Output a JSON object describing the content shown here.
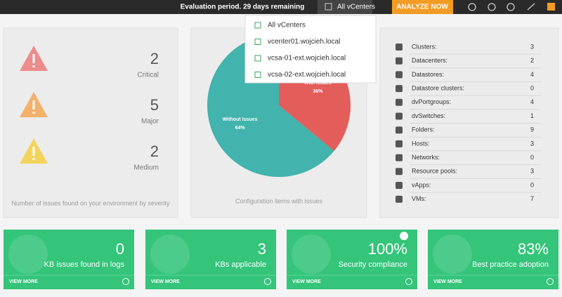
{
  "header": {
    "evaluation": "Evaluation period. 29 days remaining",
    "vcenter_button": "All vCenters",
    "analyze_button": "ANALYZE NOW"
  },
  "dropdown": {
    "items": [
      "All vCenters",
      "vcenter01.wojcieh.local",
      "vcsa-01-ext.wojcieh.local",
      "vcsa-02-ext.wojcieh.local"
    ]
  },
  "severity": {
    "items": [
      {
        "count": "2",
        "label": "Critical",
        "color": "#ec8c8c"
      },
      {
        "count": "5",
        "label": "Major",
        "color": "#f4b16c"
      },
      {
        "count": "2",
        "label": "Medium",
        "color": "#f2d45c"
      }
    ],
    "footer": "Number of issues found on your environment by severity"
  },
  "chart_data": {
    "type": "pie",
    "footer": "Configuration items with issues",
    "slices": [
      {
        "name": "With Issues",
        "value": 36,
        "value_label": "36%",
        "color": "#e35d5b"
      },
      {
        "name": "Without Issues",
        "value": 64,
        "value_label": "64%",
        "color": "#42b3ad"
      }
    ]
  },
  "inventory": {
    "rows": [
      [
        "Clusters:",
        "3"
      ],
      [
        "Datacenters:",
        "2"
      ],
      [
        "Datastores:",
        "4"
      ],
      [
        "Datastore clusters:",
        "0"
      ],
      [
        "dvPortgroups:",
        "4"
      ],
      [
        "dvSwitches:",
        "1"
      ],
      [
        "Folders:",
        "9"
      ],
      [
        "Hosts:",
        "3"
      ],
      [
        "Networks:",
        "0"
      ],
      [
        "Resource pools:",
        "3"
      ],
      [
        "vApps:",
        "0"
      ],
      [
        "VMs:",
        "7"
      ]
    ]
  },
  "cards": [
    {
      "value": "0",
      "label": "KB issues found in logs",
      "link": "VIEW MORE"
    },
    {
      "value": "3",
      "label": "KBs applicable",
      "link": "VIEW MORE"
    },
    {
      "value": "100%",
      "label": "Security compliance",
      "link": "VIEW MORE"
    },
    {
      "value": "83%",
      "label": "Best practice adoption",
      "link": "VIEW MORE"
    }
  ]
}
